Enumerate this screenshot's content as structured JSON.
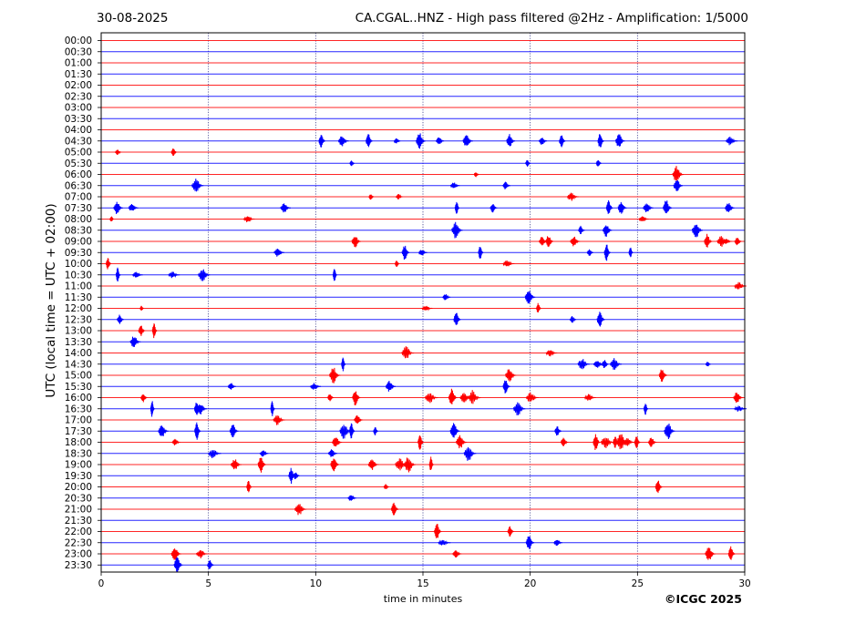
{
  "header": {
    "date": "30-08-2025",
    "title": "CA.CGAL..HNZ - High pass filtered @2Hz - Amplification: 1/5000"
  },
  "footer": {
    "copyright": "©ICGC 2025"
  },
  "chart_data": {
    "type": "line",
    "title": "CA.CGAL..HNZ - High pass filtered @2Hz - Amplification: 1/5000",
    "xlabel": "time in minutes",
    "ylabel": "UTC (local time = UTC + 02:00)",
    "xlim": [
      0,
      30
    ],
    "xticks": [
      0,
      5,
      10,
      15,
      20,
      25,
      30
    ],
    "xgrid": "dotted vertical lines every 5 minutes",
    "rows": [
      "00:00",
      "00:30",
      "01:00",
      "01:30",
      "02:00",
      "02:30",
      "03:00",
      "03:30",
      "04:00",
      "04:30",
      "05:00",
      "05:30",
      "06:00",
      "06:30",
      "07:00",
      "07:30",
      "08:00",
      "08:30",
      "09:00",
      "09:30",
      "10:00",
      "10:30",
      "11:00",
      "11:30",
      "12:00",
      "12:30",
      "13:00",
      "13:30",
      "14:00",
      "14:30",
      "15:00",
      "15:30",
      "16:00",
      "16:30",
      "17:00",
      "17:30",
      "18:00",
      "18:30",
      "19:00",
      "19:30",
      "20:00",
      "20:30",
      "21:00",
      "21:30",
      "22:00",
      "22:30",
      "23:00",
      "23:30"
    ],
    "series": [
      {
        "color": "#ff0000",
        "rows": "hours HH:00"
      },
      {
        "color": "#0000ff",
        "rows": "half hours HH:30"
      }
    ],
    "events": [
      {
        "row": "04:30",
        "t": [
          10.3,
          11.3,
          12.5,
          13.8,
          14.9,
          15.8,
          17.1,
          19.1,
          20.6,
          21.5,
          23.3,
          24.2,
          29.4
        ]
      },
      {
        "row": "05:00",
        "t": [
          0.8,
          3.4
        ]
      },
      {
        "row": "05:30",
        "t": [
          11.7,
          19.9,
          23.2
        ]
      },
      {
        "row": "06:00",
        "t": [
          17.5,
          26.9
        ]
      },
      {
        "row": "06:30",
        "t": [
          4.5,
          16.5,
          18.9,
          26.9
        ]
      },
      {
        "row": "07:00",
        "t": [
          12.6,
          13.9,
          22.0
        ]
      },
      {
        "row": "07:30",
        "t": [
          0.8,
          1.5,
          8.6,
          16.6,
          18.3,
          23.7,
          24.3,
          25.5,
          26.4,
          29.3
        ]
      },
      {
        "row": "08:00",
        "t": [
          0.5,
          6.9,
          25.3
        ]
      },
      {
        "row": "08:30",
        "t": [
          16.6,
          22.4,
          23.6,
          27.8
        ]
      },
      {
        "row": "09:00",
        "t": [
          11.9,
          20.6,
          20.9,
          22.1,
          28.3,
          29.0,
          29.2,
          29.7
        ]
      },
      {
        "row": "09:30",
        "t": [
          8.3,
          14.2,
          15.0,
          17.7,
          22.8,
          23.6,
          24.7
        ]
      },
      {
        "row": "10:00",
        "t": [
          0.35,
          13.8,
          19.0
        ]
      },
      {
        "row": "10:30",
        "t": [
          0.8,
          1.7,
          3.4,
          4.8,
          10.9
        ]
      },
      {
        "row": "11:00",
        "t": [
          29.8
        ]
      },
      {
        "row": "11:30",
        "t": [
          16.1,
          20.0
        ]
      },
      {
        "row": "12:00",
        "t": [
          1.9,
          15.2,
          20.4
        ]
      },
      {
        "row": "12:30",
        "t": [
          0.9,
          16.6,
          22.0,
          23.3
        ]
      },
      {
        "row": "13:00",
        "t": [
          1.9,
          2.5
        ]
      },
      {
        "row": "13:30",
        "t": [
          1.6
        ]
      },
      {
        "row": "14:00",
        "t": [
          14.3,
          21.0
        ]
      },
      {
        "row": "14:30",
        "t": [
          11.3,
          22.5,
          23.2,
          23.5,
          24.0,
          28.3
        ]
      },
      {
        "row": "15:00",
        "t": [
          10.9,
          19.1,
          26.2
        ]
      },
      {
        "row": "15:30",
        "t": [
          6.1,
          10.0,
          13.5,
          18.9
        ]
      },
      {
        "row": "16:00",
        "t": [
          2.0,
          10.7,
          11.9,
          15.4,
          16.4,
          17.0,
          17.4,
          20.1,
          22.8,
          29.7
        ]
      },
      {
        "row": "16:30",
        "t": [
          2.4,
          4.5,
          4.7,
          8.0,
          19.5,
          25.4,
          29.8
        ]
      },
      {
        "row": "17:00",
        "t": [
          8.3,
          12.0
        ]
      },
      {
        "row": "17:30",
        "t": [
          2.9,
          4.5,
          6.2,
          11.4,
          11.7,
          12.8,
          16.5,
          21.3,
          26.5
        ]
      },
      {
        "row": "18:00",
        "t": [
          3.5,
          11.0,
          14.9,
          16.8,
          21.6,
          23.1,
          23.6,
          24.0,
          24.3,
          24.6,
          25.0,
          25.7
        ]
      },
      {
        "row": "18:30",
        "t": [
          5.3,
          7.6,
          10.8,
          17.2
        ]
      },
      {
        "row": "19:00",
        "t": [
          6.3,
          7.5,
          10.9,
          12.7,
          14.0,
          14.4,
          15.4
        ]
      },
      {
        "row": "19:30",
        "t": [
          8.9,
          9.1
        ]
      },
      {
        "row": "20:00",
        "t": [
          6.9,
          13.3,
          26.0
        ]
      },
      {
        "row": "20:30",
        "t": [
          11.7
        ]
      },
      {
        "row": "21:00",
        "t": [
          9.3,
          13.7
        ]
      },
      {
        "row": "22:00",
        "t": [
          15.7,
          19.1
        ]
      },
      {
        "row": "22:30",
        "t": [
          16.0,
          20.0,
          21.3
        ]
      },
      {
        "row": "23:00",
        "t": [
          3.5,
          4.7,
          16.6,
          28.4,
          29.4
        ]
      },
      {
        "row": "23:30",
        "t": [
          3.6,
          5.1
        ]
      }
    ]
  }
}
